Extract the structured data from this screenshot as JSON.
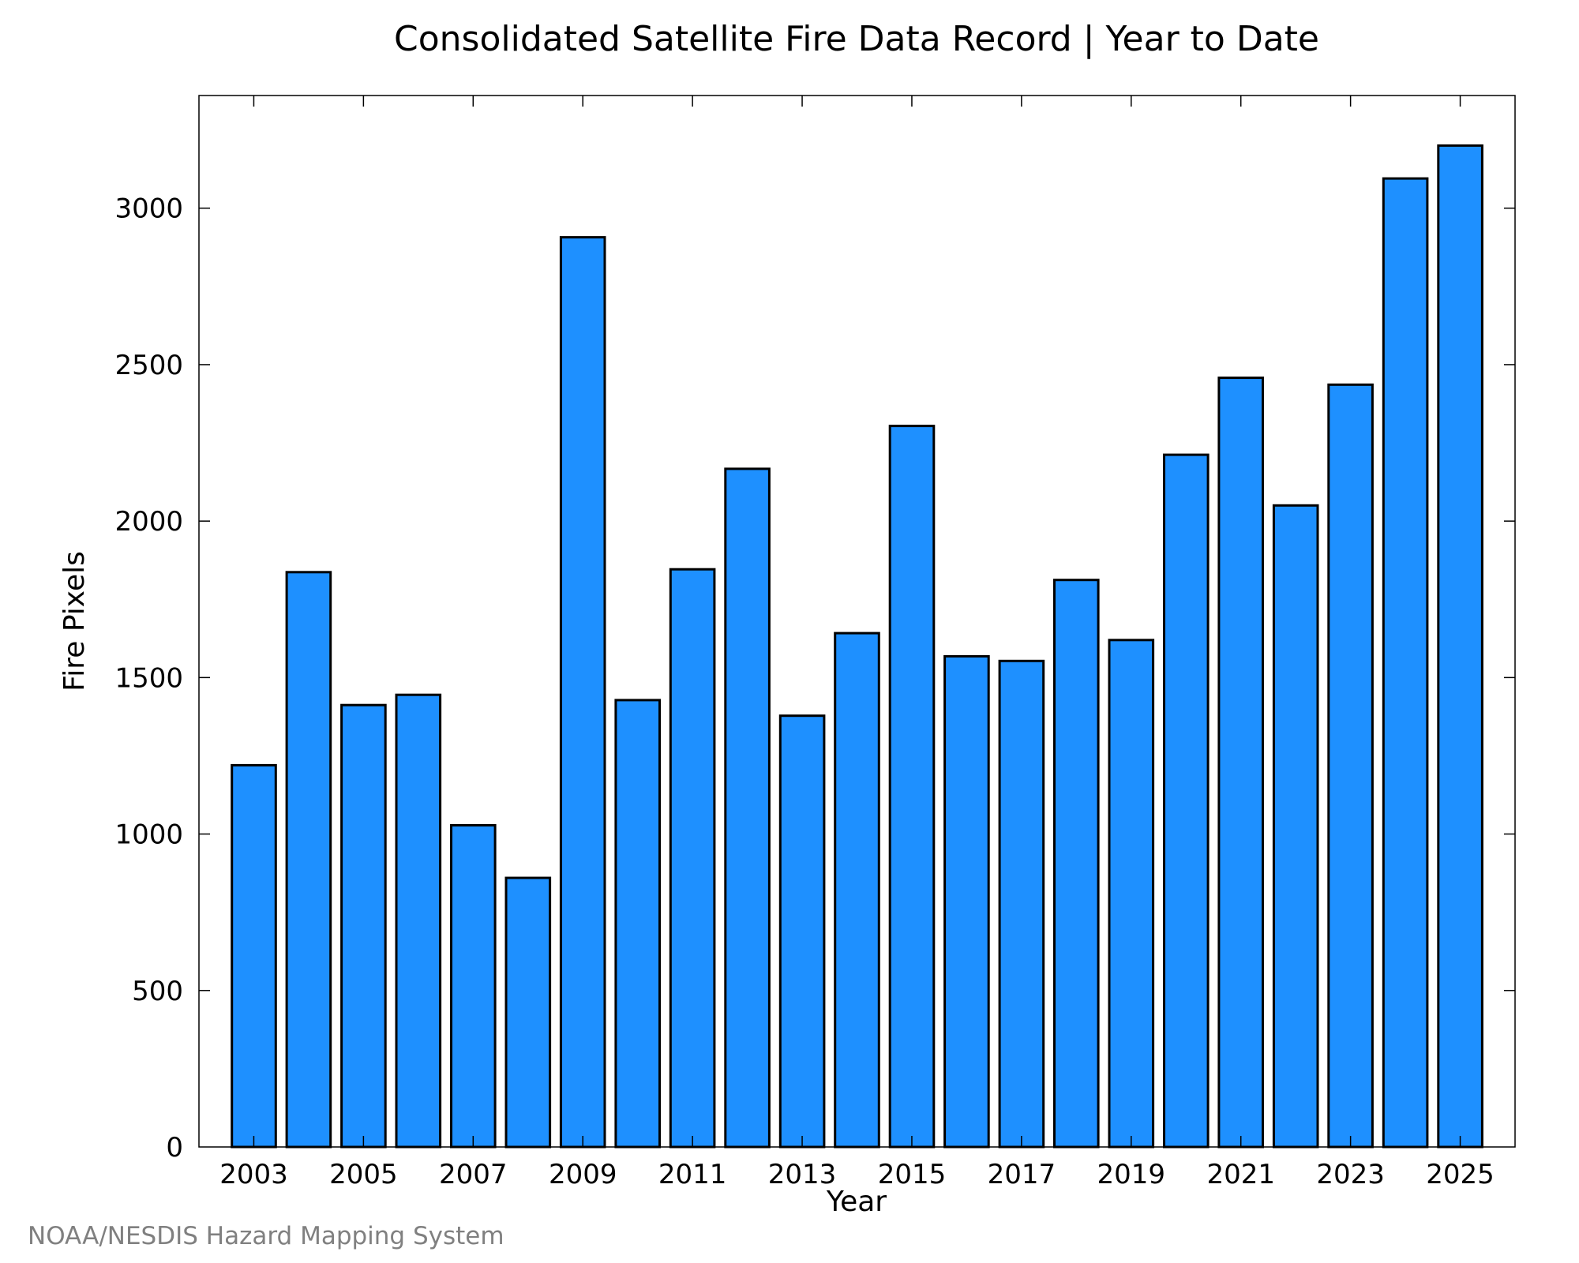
{
  "chart_data": {
    "type": "bar",
    "title": "Consolidated Satellite Fire Data Record | Year to Date",
    "xlabel": "Year",
    "ylabel": "Fire Pixels",
    "categories": [
      "2003",
      "2004",
      "2005",
      "2006",
      "2007",
      "2008",
      "2009",
      "2010",
      "2011",
      "2012",
      "2013",
      "2014",
      "2015",
      "2016",
      "2017",
      "2018",
      "2019",
      "2020",
      "2021",
      "2022",
      "2023",
      "2024",
      "2025"
    ],
    "values": [
      1220,
      1837,
      1412,
      1445,
      1028,
      860,
      2907,
      1428,
      1846,
      2167,
      1378,
      1642,
      2304,
      1568,
      1553,
      1812,
      1620,
      2212,
      2458,
      2050,
      2436,
      3095,
      3200
    ],
    "x_tick_labels": [
      "2003",
      "2005",
      "2007",
      "2009",
      "2011",
      "2013",
      "2015",
      "2017",
      "2019",
      "2021",
      "2023",
      "2025"
    ],
    "y_tick_labels": [
      0,
      500,
      1000,
      1500,
      2000,
      2500,
      3000
    ],
    "ylim": [
      0,
      3360
    ],
    "grid": false,
    "bar_color": "#1e90ff",
    "bar_edge_color": "#000000"
  },
  "credit": "NOAA/NESDIS Hazard Mapping System"
}
